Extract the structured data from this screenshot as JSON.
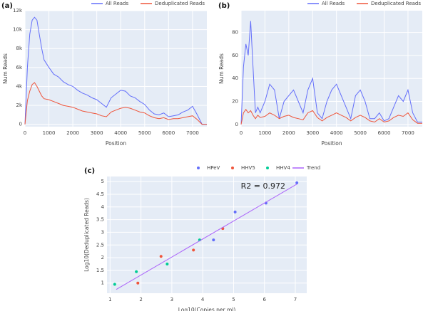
{
  "chart_data": [
    {
      "type": "line",
      "label": "(a)",
      "x_label": "Position",
      "y_label": "Num Reads",
      "x": [
        0,
        100,
        200,
        300,
        400,
        500,
        600,
        700,
        800,
        1000,
        1200,
        1400,
        1600,
        1800,
        2000,
        2200,
        2400,
        2600,
        2800,
        3000,
        3200,
        3400,
        3600,
        3800,
        4000,
        4200,
        4400,
        4600,
        4800,
        5000,
        5200,
        5400,
        5600,
        5800,
        6000,
        6200,
        6400,
        6600,
        6800,
        7000,
        7200,
        7400,
        7600
      ],
      "series": [
        {
          "name": "All Reads",
          "color": "#636efa",
          "values": [
            0,
            6000,
            9500,
            11000,
            11300,
            11000,
            9500,
            8000,
            6800,
            6000,
            5300,
            5000,
            4500,
            4200,
            4000,
            3600,
            3300,
            3100,
            2800,
            2600,
            2200,
            1800,
            2800,
            3200,
            3600,
            3500,
            3000,
            2800,
            2400,
            2100,
            1500,
            1100,
            1000,
            1200,
            800,
            900,
            1000,
            1300,
            1500,
            1900,
            1000,
            0,
            0
          ]
        },
        {
          "name": "Deduplicated Reads",
          "color": "#ef553b",
          "values": [
            0,
            2500,
            3500,
            4200,
            4400,
            4000,
            3500,
            3000,
            2700,
            2600,
            2400,
            2200,
            2000,
            1900,
            1800,
            1600,
            1400,
            1300,
            1200,
            1100,
            900,
            800,
            1300,
            1500,
            1700,
            1800,
            1700,
            1500,
            1300,
            1200,
            900,
            700,
            600,
            700,
            500,
            600,
            600,
            700,
            800,
            900,
            500,
            0,
            0
          ]
        }
      ],
      "xlim": [
        0,
        7600
      ],
      "xticks": [
        0,
        1000,
        2000,
        3000,
        4000,
        5000,
        6000,
        7000
      ],
      "ylim": [
        -250,
        12000
      ],
      "yticks": [
        0,
        {
          "value": 2000,
          "label": "2k"
        },
        {
          "value": 4000,
          "label": "4k"
        },
        {
          "value": 6000,
          "label": "6k"
        },
        {
          "value": 8000,
          "label": "8k"
        },
        {
          "value": 10000,
          "label": "10k"
        },
        {
          "value": 12000,
          "label": "12k"
        }
      ],
      "grid": true
    },
    {
      "type": "line",
      "label": "(b)",
      "x_label": "Position",
      "y_label": "Num Reads",
      "x": [
        0,
        100,
        200,
        300,
        400,
        500,
        600,
        700,
        800,
        1000,
        1200,
        1400,
        1600,
        1800,
        2000,
        2200,
        2400,
        2600,
        2800,
        3000,
        3200,
        3400,
        3600,
        3800,
        4000,
        4200,
        4400,
        4600,
        4800,
        5000,
        5200,
        5400,
        5600,
        5800,
        6000,
        6200,
        6400,
        6600,
        6800,
        7000,
        7200,
        7400,
        7600
      ],
      "series": [
        {
          "name": "All Reads",
          "color": "#636efa",
          "values": [
            0,
            50,
            70,
            60,
            90,
            50,
            10,
            15,
            10,
            20,
            35,
            30,
            5,
            20,
            25,
            30,
            20,
            10,
            30,
            40,
            10,
            5,
            20,
            30,
            35,
            25,
            15,
            5,
            25,
            30,
            20,
            5,
            5,
            10,
            3,
            5,
            15,
            25,
            20,
            30,
            10,
            2,
            2
          ]
        },
        {
          "name": "Deduplicated Reads",
          "color": "#ef553b",
          "values": [
            0,
            10,
            13,
            10,
            12,
            8,
            5,
            8,
            6,
            7,
            10,
            8,
            5,
            7,
            8,
            6,
            5,
            4,
            10,
            12,
            6,
            3,
            6,
            8,
            10,
            8,
            6,
            3,
            6,
            8,
            6,
            3,
            2,
            5,
            2,
            3,
            6,
            8,
            7,
            10,
            4,
            1,
            1
          ]
        }
      ],
      "xlim": [
        0,
        7600
      ],
      "xticks": [
        0,
        1000,
        2000,
        3000,
        4000,
        5000,
        6000,
        7000
      ],
      "ylim": [
        -2,
        99
      ],
      "yticks": [
        0,
        20,
        40,
        60,
        80
      ],
      "grid": true
    },
    {
      "type": "scatter",
      "label": "(c)",
      "x_label": "Log10(Copies per ml)",
      "y_label": "Log10(Deduplicated Reads)",
      "annotation": "R2 = 0.972",
      "series": [
        {
          "name": "HPeV",
          "color": "#636efa",
          "mode": "markers",
          "x": [
            4.35,
            5.05,
            6.05,
            7.05
          ],
          "values": [
            2.7,
            3.8,
            4.15,
            4.95
          ]
        },
        {
          "name": "HHV5",
          "color": "#ef553b",
          "mode": "markers",
          "x": [
            1.9,
            2.65,
            3.7,
            4.65
          ],
          "values": [
            1.0,
            2.05,
            2.3,
            3.15
          ]
        },
        {
          "name": "HHV4",
          "color": "#00cc96",
          "mode": "markers",
          "x": [
            1.15,
            1.85,
            2.85,
            3.9
          ],
          "values": [
            0.95,
            1.45,
            1.75,
            2.7
          ]
        },
        {
          "name": "Trend",
          "color": "#ab63fa",
          "mode": "lines",
          "x": [
            1.2,
            7.05
          ],
          "values": [
            0.75,
            4.9
          ]
        }
      ],
      "xlim": [
        0.9,
        7.37
      ],
      "xticks": [
        1,
        2,
        3,
        4,
        5,
        6,
        7
      ],
      "ylim": [
        0.6,
        5.2
      ],
      "yticks": [
        1,
        1.5,
        2,
        2.5,
        3,
        3.5,
        4,
        4.5,
        5
      ],
      "grid": true
    }
  ]
}
